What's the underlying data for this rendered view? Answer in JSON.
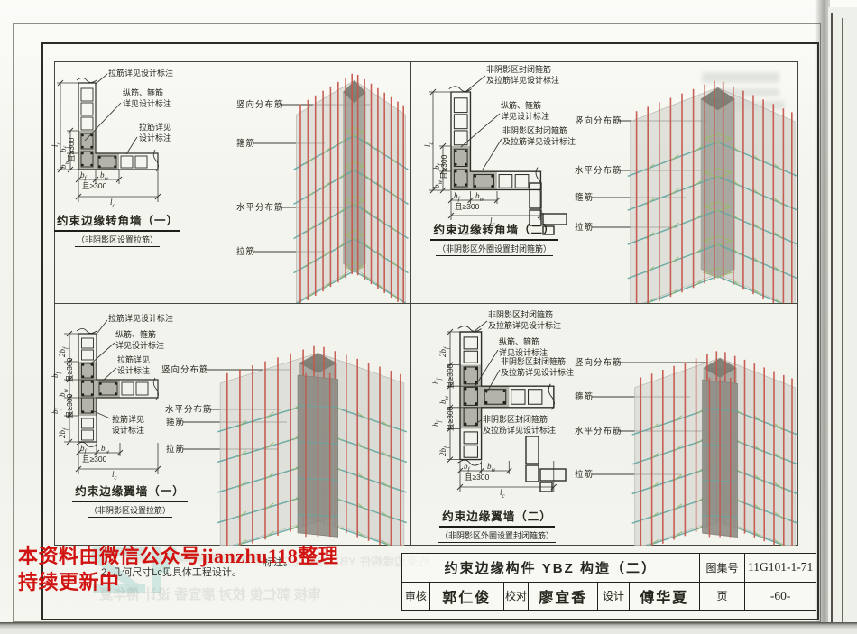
{
  "sheet": {
    "watermark": {
      "line1": "本资料由微信公众号jianzhu118整理",
      "line2": "持续更新中"
    },
    "notes": {
      "line1_tail": "标注。",
      "line2": "2. 几何尺寸Lc见具体工程设计。"
    },
    "ghosts": {
      "credits": "审核 郭仁俊 校对 廖宜香 设计 傅华夏",
      "title": "约束边缘构件 YBZ 构造（二）"
    },
    "title_block": {
      "drawing_title": "约束边缘构件 YBZ 构造（二）",
      "atlas_label": "图集号",
      "atlas_no": "11G101-1-71",
      "reviewer_label": "审核",
      "reviewer": "郭仁俊",
      "checker_label": "校对",
      "checker": "廖宜香",
      "designer_label": "设计",
      "designer": "傅华夏",
      "page_label": "页",
      "page_no": "-60-"
    }
  },
  "dims": {
    "l": "l",
    "b": "b",
    "two_b": "2b",
    "sub_c": "c",
    "sub_f": "f",
    "sub_w": "w",
    "and_ge_300": "且≥300"
  },
  "quadrants": [
    {
      "id": "corner-wall-1",
      "title": "约束边缘转角墙（一）",
      "subtitle": "（非阴影区设置拉筋）",
      "callouts": [
        "拉筋详见设计标注",
        "纵筋、箍筋\n详见设计标注",
        "拉筋详见\n设计标注"
      ],
      "bar_labels": [
        "竖向分布筋",
        "箍筋",
        "水平分布筋",
        "拉筋"
      ]
    },
    {
      "id": "corner-wall-2",
      "title": "约束边缘转角墙（二）",
      "subtitle": "（非阴影区外圈设置封闭箍筋）",
      "callouts": [
        "非阴影区封闭箍筋\n及拉筋详见设计标注",
        "纵筋、箍筋\n详见设计标注",
        "非阴影区封闭箍筋\n及拉筋详见设计标注"
      ],
      "bar_labels": [
        "竖向分布筋",
        "水平分布筋",
        "箍筋",
        "拉筋"
      ]
    },
    {
      "id": "flange-wall-1",
      "title": "约束边缘翼墙（一）",
      "subtitle": "（非阴影区设置拉筋）",
      "callouts": [
        "拉筋详见设计标注",
        "纵筋、箍筋\n详见设计标注",
        "拉筋详见\n设计标注",
        "拉筋详见\n设计标注"
      ],
      "bar_labels": [
        "竖向分布筋",
        "水平分布筋",
        "箍筋",
        "拉筋"
      ]
    },
    {
      "id": "flange-wall-2",
      "title": "约束边缘翼墙（二）",
      "subtitle": "（非阴影区外圈设置封闭箍筋）",
      "callouts": [
        "非阴影区封闭箍筋\n及拉筋详见设计标注",
        "纵筋、箍筋\n详见设计标注",
        "非阴影区封闭箍筋\n及拉筋详见设计标注",
        "非阴影区封闭箍筋\n及拉筋详见设计标注"
      ],
      "bar_labels": [
        "竖向分布筋",
        "箍筋",
        "水平分布筋",
        "拉筋"
      ]
    }
  ],
  "colors": {
    "rebar_red": "#c4564c",
    "dist_teal": "#66a9a3",
    "hoop_green": "#9cb96e",
    "watermark_red": "#d01310",
    "shadow_fill": "#b3b3ab"
  }
}
